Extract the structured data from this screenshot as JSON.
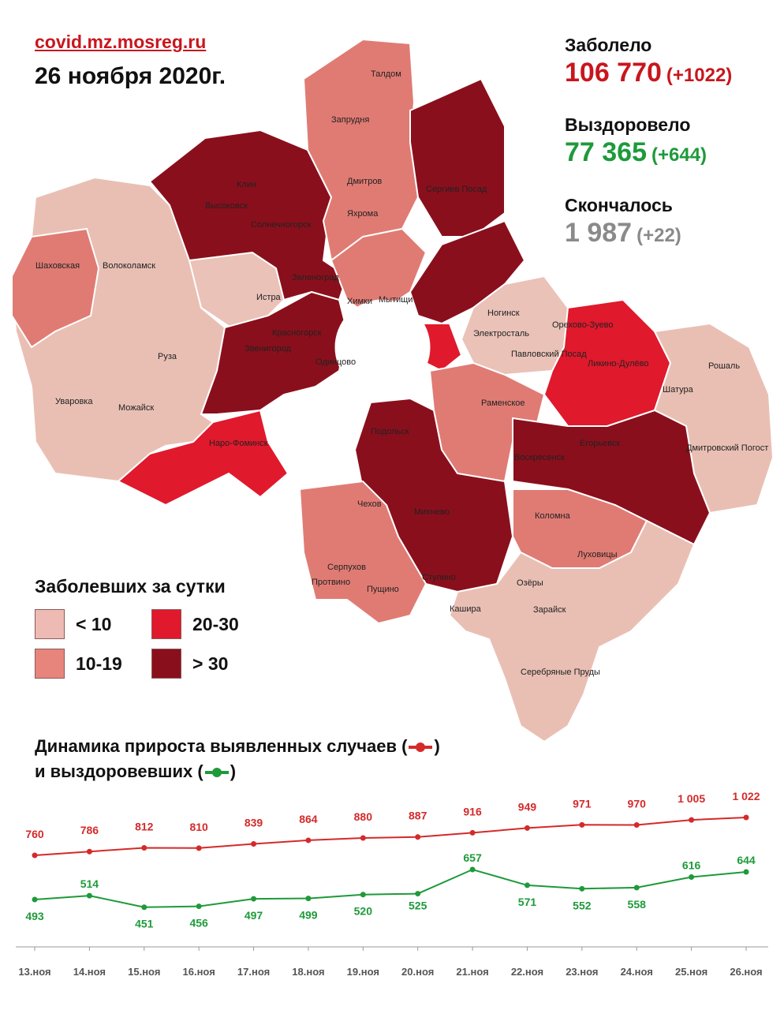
{
  "header": {
    "source": "covid.mz.mosreg.ru",
    "date": "26 ноября 2020г."
  },
  "stats": {
    "infected": {
      "label": "Заболело",
      "value": "106 770",
      "delta": "(+1022)",
      "color": "#c8161d"
    },
    "recovered": {
      "label": "Выздоровело",
      "value": "77 365",
      "delta": "(+644)",
      "color": "#1e9a3a"
    },
    "died": {
      "label": "Скончалось",
      "value": "1 987",
      "delta": "(+22)",
      "color": "#8a8a8a"
    }
  },
  "map": {
    "cities": [
      "Талдом",
      "Запрудня",
      "Дмитров",
      "Яхрома",
      "Сергиев Посад",
      "Клин",
      "Высоковск",
      "Солнечногорск",
      "Зеленоград",
      "Химки",
      "Мытищи",
      "Шаховская",
      "Волоколамск",
      "Истра",
      "Красногорск",
      "Звенигород",
      "Одинцово",
      "Руза",
      "Уваровка",
      "Можайск",
      "Наро-Фоминск",
      "Ногинск",
      "Электросталь",
      "Павловский Посад",
      "Орехово-Зуево",
      "Ликино-Дулёво",
      "Рошаль",
      "Шатура",
      "Раменское",
      "Подольск",
      "Воскресенск",
      "Егорьевск",
      "Дмитровский Погост",
      "Чехов",
      "Михнево",
      "Коломна",
      "Серпухов",
      "Протвино",
      "Пущино",
      "Ступино",
      "Озёры",
      "Луховицы",
      "Зарайск",
      "Кашира",
      "Серебряные Пруды"
    ],
    "category_colors": {
      "lt10": "#e9bfb4",
      "10-19": "#e07b74",
      "20-30": "#e0192c",
      "gt30": "#8a0f1c"
    }
  },
  "legend": {
    "title": "Заболевших за сутки",
    "items": [
      {
        "label": "< 10",
        "color": "#eebbb4"
      },
      {
        "label": "20-30",
        "color": "#e0192c"
      },
      {
        "label": "10-19",
        "color": "#e7847c"
      },
      {
        "label": "> 30",
        "color": "#8a0f1c"
      }
    ]
  },
  "dynamics": {
    "title_line1": "Динамика прироста выявленных случаев (",
    "title_line1_end": ")",
    "title_line2": "и выздоровевших (",
    "title_line2_end": ")"
  },
  "chart_data": {
    "type": "line",
    "categories": [
      "13.ноя",
      "14.ноя",
      "15.ноя",
      "16.ноя",
      "17.ноя",
      "18.ноя",
      "19.ноя",
      "20.ноя",
      "21.ноя",
      "22.ноя",
      "23.ноя",
      "24.ноя",
      "25.ноя",
      "26.ноя"
    ],
    "series": [
      {
        "values": [
          760,
          786,
          812,
          810,
          839,
          864,
          880,
          887,
          916,
          949,
          971,
          970,
          1005,
          1022
        ],
        "labels": [
          "760",
          "786",
          "812",
          "810",
          "839",
          "864",
          "880",
          "887",
          "916",
          "949",
          "971",
          "970",
          "1 005",
          "1 022"
        ],
        "color": "#d42a2a"
      },
      {
        "values": [
          493,
          514,
          451,
          456,
          497,
          499,
          520,
          525,
          657,
          571,
          552,
          558,
          616,
          644
        ],
        "labels": [
          "493",
          "514",
          "451",
          "456",
          "497",
          "499",
          "520",
          "525",
          "657",
          "571",
          "552",
          "558",
          "616",
          "644"
        ],
        "color": "#1e9a3a"
      }
    ],
    "grid": false
  }
}
